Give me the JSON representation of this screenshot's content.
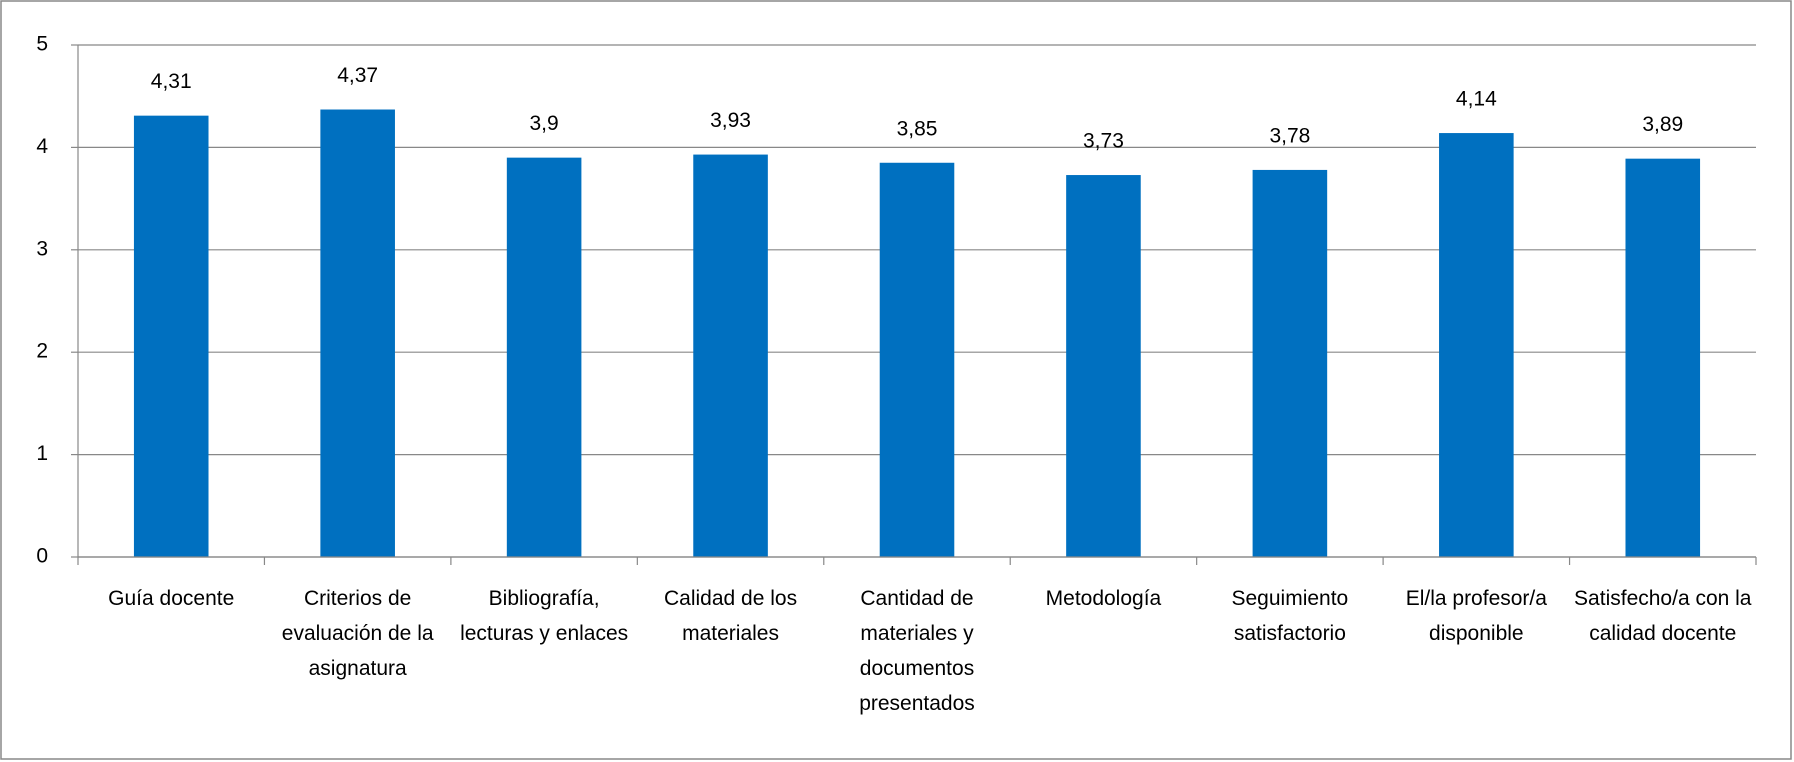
{
  "chart_data": {
    "type": "bar",
    "categories": [
      "Guía docente",
      "Criterios de evaluación de la asignatura",
      "Bibliografía, lecturas y enlaces",
      "Calidad de los materiales",
      "Cantidad de materiales y documentos presentados",
      "Metodología",
      "Seguimiento satisfactorio",
      "El/la profesor/a disponible",
      "Satisfecho/a con la calidad docente"
    ],
    "values": [
      4.31,
      4.37,
      3.9,
      3.93,
      3.85,
      3.73,
      3.78,
      4.14,
      3.89
    ],
    "value_labels": [
      "4,31",
      "4,37",
      "3,9",
      "3,93",
      "3,85",
      "3,73",
      "3,78",
      "4,14",
      "3,89"
    ],
    "color": "#0070c0",
    "ylim": [
      0,
      5
    ],
    "yticks": [
      0,
      1,
      2,
      3,
      4,
      5
    ],
    "grid": true
  }
}
